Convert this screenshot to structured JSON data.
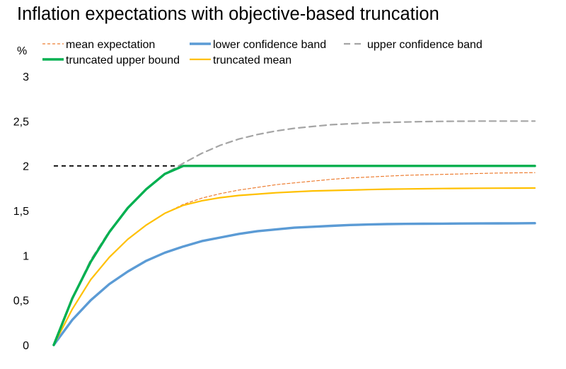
{
  "chart_data": {
    "type": "line",
    "title": "Inflation expectations with objective-based truncation",
    "ylabel": "%",
    "xlabel": "",
    "ylim": [
      0,
      3
    ],
    "yticks": [
      0,
      0.5,
      1,
      1.5,
      2,
      2.5,
      3
    ],
    "ytick_labels": [
      "0",
      "0,5",
      "1",
      "1,5",
      "2",
      "2,5",
      "3"
    ],
    "grid": false,
    "legend_position": "top",
    "x": [
      0,
      1,
      2,
      3,
      4,
      5,
      6,
      7,
      8,
      9,
      10,
      11,
      12,
      13,
      14,
      15,
      16,
      17,
      18,
      19,
      20,
      21,
      22,
      23,
      24,
      25,
      26
    ],
    "reference_line": {
      "y": 2,
      "color": "#000000",
      "style": "dashed",
      "x_from": 0,
      "x_to": 26
    },
    "series": [
      {
        "name": "mean expectation",
        "color": "#ED7D31",
        "style": "dotted-thin",
        "x": [
          0,
          1,
          2,
          3,
          4,
          5,
          6,
          7,
          8,
          9,
          10,
          11,
          12,
          13,
          14,
          15,
          16,
          17,
          18,
          19,
          20,
          21,
          22,
          23,
          24,
          25,
          26
        ],
        "values": [
          0,
          0.4,
          0.73,
          0.98,
          1.18,
          1.34,
          1.47,
          1.57,
          1.64,
          1.69,
          1.73,
          1.76,
          1.79,
          1.81,
          1.83,
          1.85,
          1.865,
          1.875,
          1.885,
          1.895,
          1.9,
          1.905,
          1.91,
          1.915,
          1.92,
          1.922,
          1.925
        ]
      },
      {
        "name": "lower confidence band",
        "color": "#5B9BD5",
        "style": "solid-thick",
        "x": [
          0,
          1,
          2,
          3,
          4,
          5,
          6,
          7,
          8,
          9,
          10,
          11,
          12,
          13,
          14,
          15,
          16,
          17,
          18,
          19,
          20,
          21,
          22,
          23,
          24,
          25,
          26
        ],
        "values": [
          0,
          0.28,
          0.5,
          0.68,
          0.82,
          0.94,
          1.03,
          1.1,
          1.16,
          1.2,
          1.24,
          1.27,
          1.29,
          1.31,
          1.32,
          1.33,
          1.34,
          1.345,
          1.35,
          1.352,
          1.354,
          1.355,
          1.356,
          1.357,
          1.358,
          1.359,
          1.36
        ]
      },
      {
        "name": "upper confidence band",
        "color": "#A5A5A5",
        "style": "dashed",
        "x": [
          0,
          1,
          2,
          3,
          4,
          5,
          6,
          7,
          8,
          9,
          10,
          11,
          12,
          13,
          14,
          15,
          16,
          17,
          18,
          19,
          20,
          21,
          22,
          23,
          24,
          25,
          26
        ],
        "values": [
          0,
          0.52,
          0.95,
          1.27,
          1.53,
          1.74,
          1.91,
          2.03,
          2.14,
          2.23,
          2.3,
          2.35,
          2.39,
          2.42,
          2.44,
          2.46,
          2.47,
          2.48,
          2.485,
          2.49,
          2.495,
          2.497,
          2.499,
          2.5,
          2.5,
          2.5,
          2.5
        ]
      },
      {
        "name": "truncated upper bound",
        "color": "#00B050",
        "style": "solid-thick",
        "x": [
          0,
          1,
          2,
          3,
          4,
          5,
          6,
          7,
          8,
          26
        ],
        "values": [
          0,
          0.52,
          0.93,
          1.26,
          1.53,
          1.74,
          1.91,
          2.0,
          2.0,
          2.0
        ]
      },
      {
        "name": "truncated mean",
        "color": "#FFC000",
        "style": "solid",
        "x": [
          0,
          1,
          2,
          3,
          4,
          5,
          6,
          7,
          8,
          9,
          10,
          11,
          12,
          13,
          14,
          15,
          16,
          17,
          18,
          19,
          20,
          21,
          22,
          23,
          24,
          25,
          26
        ],
        "values": [
          0,
          0.4,
          0.73,
          0.98,
          1.18,
          1.34,
          1.47,
          1.56,
          1.61,
          1.645,
          1.67,
          1.685,
          1.7,
          1.71,
          1.72,
          1.725,
          1.73,
          1.735,
          1.74,
          1.742,
          1.745,
          1.747,
          1.749,
          1.75,
          1.751,
          1.752,
          1.753
        ]
      }
    ]
  }
}
